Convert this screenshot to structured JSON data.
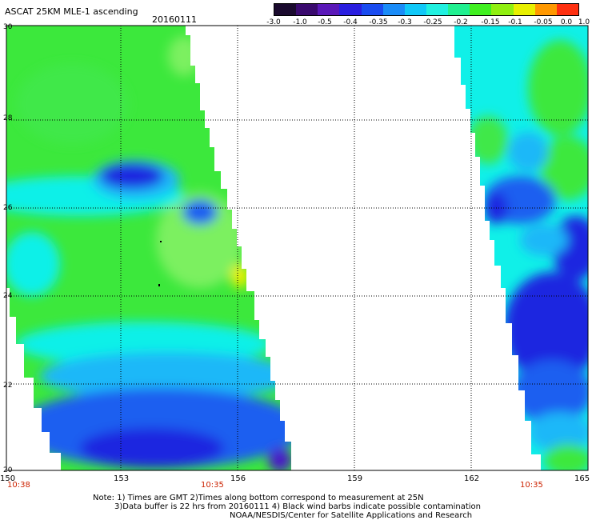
{
  "title": "ASCAT 25KM MLE-1 ascending",
  "date": "20160111",
  "colorbar": {
    "labels": [
      "-3.0",
      "-1.0",
      "-0.5",
      "-0.4",
      "-0.35",
      "-0.3",
      "-0.25",
      "-0.2",
      "-0.15",
      "-0.1",
      "-0.05",
      "0.0",
      "1.0"
    ],
    "colors": [
      "#1a0a2e",
      "#3a0a6e",
      "#5a18b8",
      "#2a1ee0",
      "#1a4cf0",
      "#1a8cf8",
      "#10c8f8",
      "#20f0e0",
      "#20f090",
      "#40f020",
      "#90f010",
      "#e8f000",
      "#ff9800",
      "#ff3010"
    ]
  },
  "axes": {
    "lat_labels": [
      "30",
      "28",
      "26",
      "24",
      "22",
      "20"
    ],
    "lon_labels": [
      "150",
      "153",
      "156",
      "159",
      "162",
      "165"
    ]
  },
  "times": {
    "left": "10:38",
    "middle": "10:35",
    "right": "10:35"
  },
  "notes": {
    "line1": "Note: 1) Times are GMT 2)Times along bottom correspond to measurement at 25N",
    "line2": "3)Data buffer is 22 hrs from 20160111 4) Black wind barbs indicate possible contamination",
    "line3": "NOAA/NESDIS/Center for Satellite Applications and Research"
  },
  "map_colors": {
    "green": "#3ce83c",
    "light_green": "#7cf060",
    "cyan": "#10f0e8",
    "sky": "#1ab8f8",
    "blue": "#1a5ef0",
    "deep_blue": "#1a26e0",
    "violet": "#4a18c8"
  }
}
